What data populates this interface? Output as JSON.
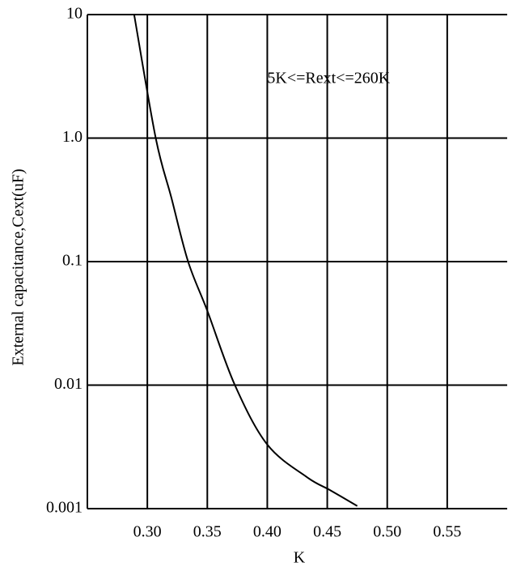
{
  "chart_data": {
    "type": "line",
    "xlabel": "K",
    "ylabel": "External capacitance,Cext(uF)",
    "x": [
      0.289,
      0.307,
      0.32,
      0.334,
      0.35,
      0.373,
      0.4,
      0.433,
      0.453,
      0.475
    ],
    "values": [
      10,
      1.0,
      0.33,
      0.1,
      0.04,
      0.01,
      0.0033,
      0.0018,
      0.0014,
      0.00105
    ],
    "color": "#000000",
    "xlim": [
      0.25,
      0.6
    ],
    "ylim": [
      0.001,
      10
    ],
    "ylog": true,
    "grid": true,
    "xticks": [
      {
        "value": 0.3,
        "label": "0.30"
      },
      0.35,
      {
        "value": 0.4,
        "label": "0.40"
      },
      0.45,
      {
        "value": 0.5,
        "label": "0.50"
      },
      0.55
    ],
    "yticks": [
      0.001,
      0.01,
      0.1,
      {
        "value": 1,
        "label": "1.0"
      },
      10
    ],
    "annotations": [
      {
        "text": "5K<=Rext<=260K",
        "x": 0.4,
        "y": 3
      }
    ]
  }
}
